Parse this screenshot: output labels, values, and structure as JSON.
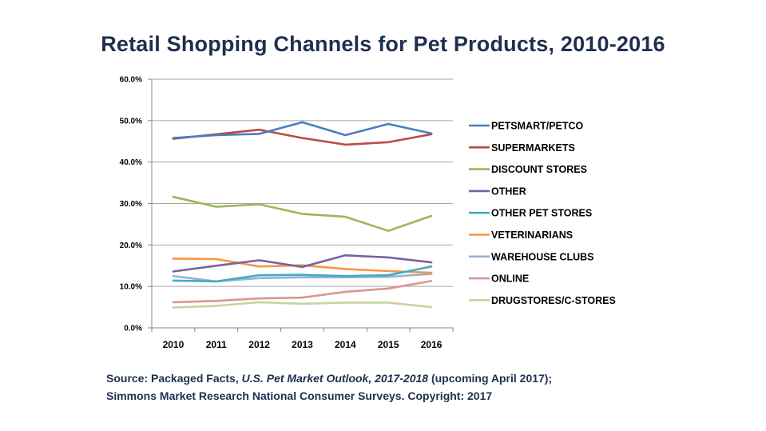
{
  "title": "Retail Shopping Channels for Pet Products, 2010-2016",
  "chart_data": {
    "type": "line",
    "title": "Retail Shopping Channels for Pet Products, 2010-2016",
    "xlabel": "",
    "ylabel": "",
    "x": [
      "2010",
      "2011",
      "2012",
      "2013",
      "2014",
      "2015",
      "2016"
    ],
    "ylim": [
      0,
      60
    ],
    "yticks": [
      0,
      10,
      20,
      30,
      40,
      50,
      60
    ],
    "ytick_labels": [
      "0.0%",
      "10.0%",
      "20.0%",
      "30.0%",
      "40.0%",
      "50.0%",
      "60.0%"
    ],
    "grid": "horizontal",
    "legend_position": "right",
    "series": [
      {
        "name": "PETSMART/PETCO",
        "color": "#4a7ebb",
        "values": [
          45.8,
          46.5,
          46.8,
          49.6,
          46.5,
          49.2,
          46.9
        ]
      },
      {
        "name": "SUPERMARKETS",
        "color": "#be4b48",
        "values": [
          45.6,
          46.7,
          47.8,
          45.8,
          44.2,
          44.8,
          46.7
        ]
      },
      {
        "name": "DISCOUNT STORES",
        "color": "#98b954",
        "values": [
          31.6,
          29.2,
          29.8,
          27.5,
          26.8,
          23.4,
          27.0
        ]
      },
      {
        "name": "OTHER",
        "color": "#7d60a0",
        "values": [
          13.6,
          15.0,
          16.3,
          14.7,
          17.5,
          17.0,
          15.8
        ]
      },
      {
        "name": "OTHER PET STORES",
        "color": "#46aac5",
        "values": [
          11.4,
          11.2,
          12.7,
          12.8,
          12.5,
          12.7,
          14.8
        ]
      },
      {
        "name": "VETERINARIANS",
        "color": "#f79646",
        "values": [
          16.7,
          16.6,
          14.8,
          15.1,
          14.2,
          13.7,
          13.3
        ]
      },
      {
        "name": "WAREHOUSE CLUBS",
        "color": "#95b3d7",
        "values": [
          12.5,
          11.2,
          12.0,
          12.2,
          12.2,
          12.3,
          13.0
        ]
      },
      {
        "name": "ONLINE",
        "color": "#d99694",
        "values": [
          6.2,
          6.5,
          7.1,
          7.3,
          8.7,
          9.5,
          11.3
        ]
      },
      {
        "name": "DRUGSTORES/C-STORES",
        "color": "#c3d69b",
        "values": [
          4.9,
          5.3,
          6.2,
          5.8,
          6.1,
          6.1,
          5.0
        ]
      }
    ]
  },
  "source": {
    "prefix": "Source:  Packaged Facts,  ",
    "publication": "U.S. Pet Market Outlook, 2017-2018",
    "suffix": " (upcoming April 2017);",
    "line2": "Simmons Market Research National Consumer Surveys.  Copyright: 2017"
  }
}
